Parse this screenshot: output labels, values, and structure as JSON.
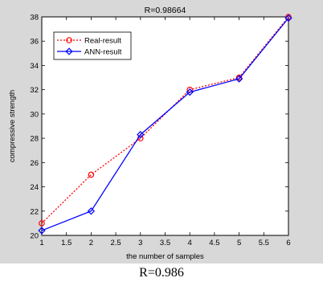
{
  "caption": "R=0.986",
  "chart_data": {
    "type": "line",
    "title": "R=0.98664",
    "xlabel": "the number of samples",
    "ylabel": "compressive strength",
    "xlim": [
      1,
      6
    ],
    "ylim": [
      20,
      38
    ],
    "xticks": [
      "1",
      "1.5",
      "2",
      "2.5",
      "3",
      "3.5",
      "4",
      "4.5",
      "5",
      "5.5",
      "6"
    ],
    "yticks": [
      "20",
      "22",
      "24",
      "26",
      "28",
      "30",
      "32",
      "34",
      "36",
      "38"
    ],
    "grid": false,
    "legend_position": "top-left",
    "x": [
      1,
      2,
      3,
      4,
      5,
      6
    ],
    "series": [
      {
        "name": "Real-result",
        "values": [
          21.0,
          25.0,
          28.0,
          32.0,
          33.0,
          38.0
        ],
        "color": "#ff0000",
        "line_style": "dotted",
        "marker": "circle"
      },
      {
        "name": "ANN-result",
        "values": [
          20.4,
          22.0,
          28.3,
          31.8,
          32.9,
          37.9
        ],
        "color": "#0000ff",
        "line_style": "solid",
        "marker": "diamond"
      }
    ]
  }
}
